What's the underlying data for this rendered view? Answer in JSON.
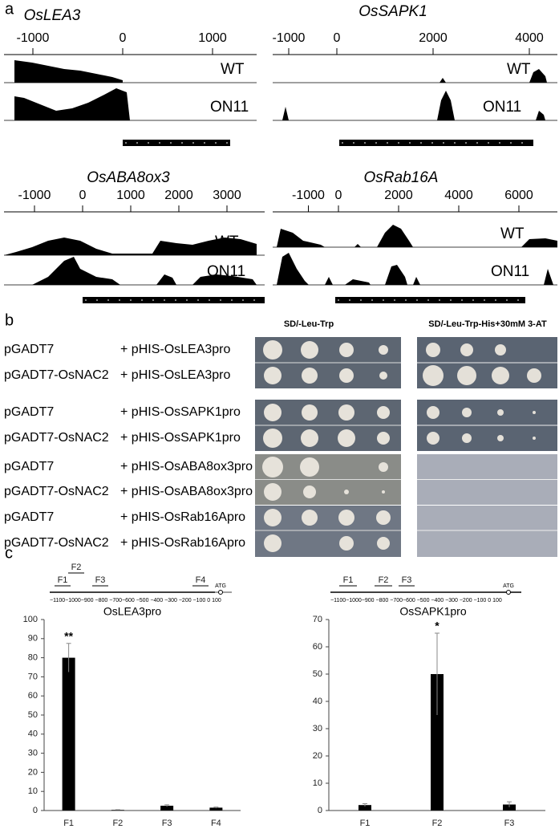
{
  "panel_a": {
    "label": "a",
    "tracks": [
      {
        "gene": "OsLEA3",
        "ticks": [
          -1000,
          0,
          1000
        ],
        "samples": [
          "WT",
          "ON11"
        ]
      },
      {
        "gene": "OsSAPK1",
        "ticks": [
          -1000,
          0,
          2000,
          4000
        ],
        "samples": [
          "WT",
          "ON11"
        ]
      },
      {
        "gene": "OsABA8ox3",
        "ticks": [
          -1000,
          0,
          1000,
          2000,
          3000
        ],
        "samples": [
          "WT",
          "ON11"
        ]
      },
      {
        "gene": "OsRab16A",
        "ticks": [
          -1000,
          0,
          2000,
          4000,
          6000
        ],
        "samples": [
          "WT",
          "ON11"
        ]
      }
    ]
  },
  "panel_b": {
    "label": "b",
    "media": [
      "SD/-Leu-Trp",
      "SD/-Leu-Trp-His+30mM 3-AT"
    ],
    "rows": [
      {
        "bait": "pGADT7",
        "prey": "+ pHIS-OsLEA3pro"
      },
      {
        "bait": "pGADT7-OsNAC2",
        "prey": "+ pHIS-OsLEA3pro"
      },
      {
        "bait": "pGADT7",
        "prey": "+ pHIS-OsSAPK1pro"
      },
      {
        "bait": "pGADT7-OsNAC2",
        "prey": "+ pHIS-OsSAPK1pro"
      },
      {
        "bait": "pGADT7",
        "prey": "+ pHIS-OsABA8ox3pro"
      },
      {
        "bait": "pGADT7-OsNAC2",
        "prey": "+ pHIS-OsABA8ox3pro"
      },
      {
        "bait": "pGADT7",
        "prey": "+ pHIS-OsRab16Apro"
      },
      {
        "bait": "pGADT7-OsNAC2",
        "prey": "+ pHIS-OsRab16Apro"
      }
    ]
  },
  "panel_c": {
    "label": "c",
    "diagrams": [
      {
        "fragments": [
          "F1",
          "F2",
          "F3",
          "F4"
        ],
        "axis_text": "−1100−1000−900 −800 −700−600 −500 −400 −300 −200 −100  0  100",
        "start": "ATG"
      },
      {
        "fragments": [
          "F1",
          "F2",
          "F3"
        ],
        "axis_text": "−1100−1000−900 −800 −700−600 −500 −400 −300 −200 −100  0  100",
        "start": "ATG"
      }
    ]
  },
  "chart_data": [
    {
      "type": "bar",
      "title": "OsLEA3pro",
      "categories": [
        "F1",
        "F2",
        "F3",
        "F4"
      ],
      "values": [
        80,
        0.3,
        2.5,
        1.5
      ],
      "errors": [
        7.5,
        0.1,
        0.5,
        0.3
      ],
      "color": "#000000",
      "ylim": [
        0,
        100
      ],
      "yticks": [
        0,
        10,
        20,
        30,
        40,
        50,
        60,
        70,
        80,
        90,
        100
      ],
      "annotations": [
        {
          "text": "**",
          "x": "F1"
        }
      ]
    },
    {
      "type": "bar",
      "title": "OsSAPK1pro",
      "categories": [
        "F1",
        "F2",
        "F3"
      ],
      "values": [
        2,
        50,
        2.2
      ],
      "errors": [
        0.5,
        15,
        1
      ],
      "color": "#000000",
      "ylim": [
        0,
        70
      ],
      "yticks": [
        0,
        10,
        20,
        30,
        40,
        50,
        60,
        70
      ],
      "annotations": [
        {
          "text": "*",
          "x": "F2"
        }
      ]
    }
  ]
}
